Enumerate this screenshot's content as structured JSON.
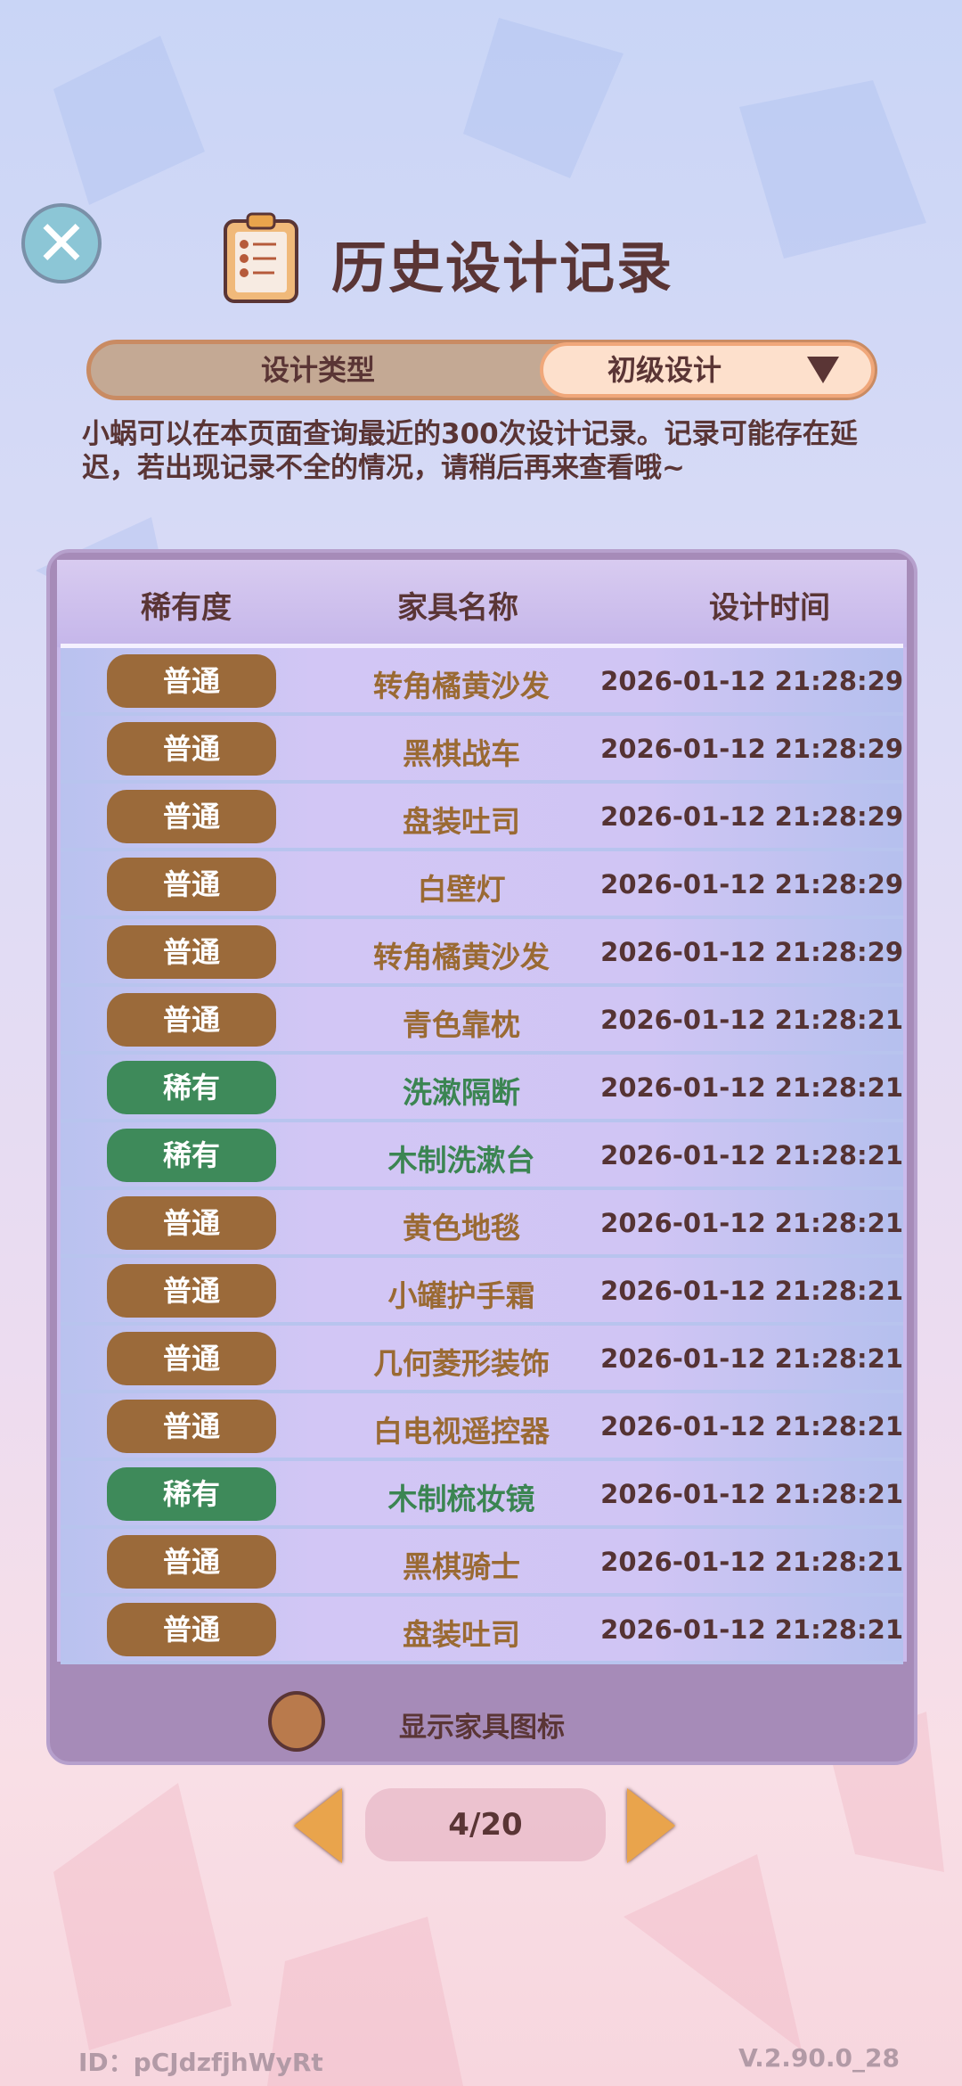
{
  "header": {
    "title": "历史设计记录",
    "close_icon": "close-icon",
    "title_icon": "clipboard-icon"
  },
  "selector": {
    "label": "设计类型",
    "value": "初级设计"
  },
  "description": "小蜗可以在本页面查询最近的300次设计记录。记录可能存在延迟，若出现记录不全的情况，请稍后再来查看哦~",
  "table": {
    "columns": [
      "稀有度",
      "家具名称",
      "设计时间"
    ],
    "rows": [
      {
        "rarity": "普通",
        "name": "转角橘黄沙发",
        "time": "2026-01-12 21:28:29"
      },
      {
        "rarity": "普通",
        "name": "黑棋战车",
        "time": "2026-01-12 21:28:29"
      },
      {
        "rarity": "普通",
        "name": "盘装吐司",
        "time": "2026-01-12 21:28:29"
      },
      {
        "rarity": "普通",
        "name": "白壁灯",
        "time": "2026-01-12 21:28:29"
      },
      {
        "rarity": "普通",
        "name": "转角橘黄沙发",
        "time": "2026-01-12 21:28:29"
      },
      {
        "rarity": "普通",
        "name": "青色靠枕",
        "time": "2026-01-12 21:28:21"
      },
      {
        "rarity": "稀有",
        "name": "洗漱隔断",
        "time": "2026-01-12 21:28:21"
      },
      {
        "rarity": "稀有",
        "name": "木制洗漱台",
        "time": "2026-01-12 21:28:21"
      },
      {
        "rarity": "普通",
        "name": "黄色地毯",
        "time": "2026-01-12 21:28:21"
      },
      {
        "rarity": "普通",
        "name": "小罐护手霜",
        "time": "2026-01-12 21:28:21"
      },
      {
        "rarity": "普通",
        "name": "几何菱形装饰",
        "time": "2026-01-12 21:28:21"
      },
      {
        "rarity": "普通",
        "name": "白电视遥控器",
        "time": "2026-01-12 21:28:21"
      },
      {
        "rarity": "稀有",
        "name": "木制梳妆镜",
        "time": "2026-01-12 21:28:21"
      },
      {
        "rarity": "普通",
        "name": "黑棋骑士",
        "time": "2026-01-12 21:28:21"
      },
      {
        "rarity": "普通",
        "name": "盘装吐司",
        "time": "2026-01-12 21:28:21"
      }
    ]
  },
  "colors": {
    "普通": {
      "badge": "#9b6a3a",
      "text": "#9a6a33"
    },
    "稀有": {
      "badge": "#3e8a5a",
      "text": "#3b8552"
    }
  },
  "toggle": {
    "label": "显示家具图标",
    "checked": false
  },
  "pagination": {
    "current": "4/20"
  },
  "footer": {
    "id": "ID：pCJdzfjhWyRt",
    "version": "V.2.90.0_28"
  }
}
